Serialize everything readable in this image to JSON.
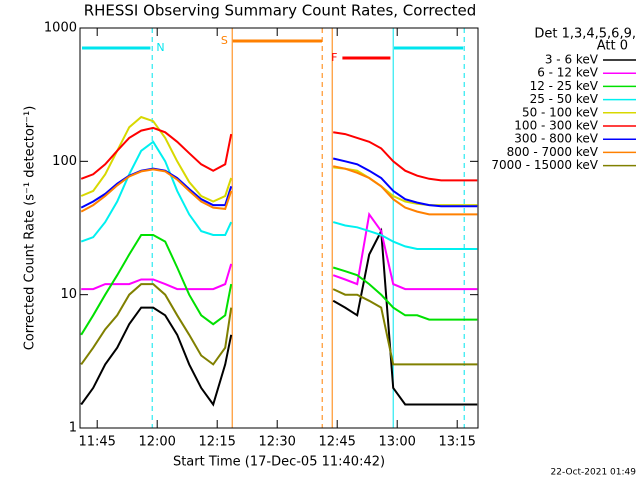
{
  "chart_data": {
    "type": "line",
    "title": "RHESSI Observing Summary Count Rates, Corrected",
    "x_label": "Start Time (17-Dec-05 11:40:42)",
    "y_label": "Corrected Count Rate (s⁻¹ detector⁻¹)",
    "legend_title": [
      "Det 1,3,4,5,6,9,",
      "Att 0"
    ],
    "footer": "22-Oct-2021 01:49",
    "log_y": true,
    "legend": "right",
    "xlim": [
      700.7,
      800.2
    ],
    "ylim": [
      1,
      1000
    ],
    "yticks": [
      1,
      10,
      100,
      1000
    ],
    "xticks": [
      {
        "value": 705,
        "label": "11:45"
      },
      {
        "value": 720,
        "label": "12:00"
      },
      {
        "value": 735,
        "label": "12:15"
      },
      {
        "value": 750,
        "label": "12:30"
      },
      {
        "value": 765,
        "label": "12:45"
      },
      {
        "value": 780,
        "label": "13:00"
      },
      {
        "value": 795,
        "label": "13:15"
      }
    ],
    "x": [
      701,
      704,
      707,
      710,
      713,
      716,
      719,
      722,
      725,
      728,
      731,
      734,
      737,
      738.5,
      750,
      764,
      767,
      770,
      773,
      776,
      779,
      782,
      785,
      788,
      791,
      794,
      797,
      800
    ],
    "series": [
      {
        "name": "3 - 6 keV",
        "color": "#000000",
        "values": [
          1.5,
          2,
          3,
          4,
          6,
          8,
          8,
          7,
          5,
          3,
          2,
          1.5,
          3,
          5,
          null,
          9,
          8,
          7,
          20,
          30,
          2,
          1.5,
          1.5,
          1.5,
          1.5,
          1.5,
          1.5,
          1.5
        ]
      },
      {
        "name": "6 - 12 keV",
        "color": "#ff00ff",
        "values": [
          11,
          11,
          12,
          12,
          12,
          13,
          13,
          12,
          11,
          11,
          11,
          11,
          12,
          17,
          null,
          14,
          13,
          12,
          40,
          30,
          12,
          11,
          11,
          11,
          11,
          11,
          11,
          11
        ]
      },
      {
        "name": "12 - 25 keV",
        "color": "#00e000",
        "values": [
          5,
          7,
          10,
          14,
          20,
          28,
          28,
          25,
          16,
          10,
          7,
          6,
          7,
          12,
          null,
          16,
          15,
          14,
          12,
          10,
          8,
          7,
          7,
          6.5,
          6.5,
          6.5,
          6.5,
          6.5
        ]
      },
      {
        "name": "25 - 50 keV",
        "color": "#00f0f0",
        "values": [
          25,
          27,
          35,
          50,
          80,
          120,
          140,
          100,
          60,
          40,
          30,
          28,
          28,
          35,
          null,
          35,
          33,
          32,
          30,
          28,
          25,
          23,
          22,
          22,
          22,
          22,
          22,
          22
        ]
      },
      {
        "name": "50 - 100 keV",
        "color": "#d8d800",
        "values": [
          55,
          60,
          80,
          120,
          180,
          215,
          200,
          150,
          100,
          70,
          55,
          50,
          55,
          75,
          null,
          90,
          88,
          85,
          75,
          65,
          55,
          50,
          48,
          47,
          47,
          47,
          47,
          47
        ]
      },
      {
        "name": "100 - 300 keV",
        "color": "#ff0000",
        "values": [
          74,
          80,
          95,
          120,
          150,
          170,
          178,
          165,
          140,
          115,
          95,
          85,
          95,
          160,
          null,
          165,
          160,
          150,
          140,
          125,
          100,
          85,
          78,
          74,
          72,
          72,
          72,
          72
        ]
      },
      {
        "name": "300 - 800 keV",
        "color": "#0000ff",
        "values": [
          45,
          50,
          57,
          68,
          78,
          85,
          88,
          85,
          75,
          62,
          52,
          47,
          47,
          65,
          null,
          105,
          100,
          95,
          85,
          75,
          60,
          52,
          49,
          47,
          46,
          46,
          46,
          46
        ]
      },
      {
        "name": "800 - 7000 keV",
        "color": "#ff8000",
        "values": [
          42,
          47,
          55,
          66,
          77,
          84,
          87,
          84,
          73,
          60,
          50,
          45,
          44,
          60,
          null,
          92,
          88,
          82,
          75,
          65,
          52,
          45,
          42,
          40,
          40,
          40,
          40,
          40
        ]
      },
      {
        "name": "7000 - 15000 keV",
        "color": "#808000",
        "values": [
          3,
          4,
          5.5,
          7,
          10,
          12,
          12,
          10,
          7,
          5,
          3.5,
          3,
          4,
          8,
          null,
          11,
          10,
          10,
          9,
          8,
          3,
          3,
          3,
          3,
          3,
          3,
          3,
          3
        ]
      }
    ],
    "flags": [
      {
        "label": "N",
        "color": "#00e5ee",
        "start": 701.2,
        "end": 718.3
      },
      {
        "label": "S",
        "color": "#ff8000",
        "start": 738.9,
        "end": 761.2
      },
      {
        "label": "F",
        "color": "#ff0000",
        "start": 766.3,
        "end": 778.3
      },
      {
        "color": "#00e5ee",
        "start": 779.2,
        "end": 796.5
      }
    ],
    "markers": [
      {
        "x": 718.75,
        "color": "#00e5ee",
        "dashed": true
      },
      {
        "x": 738.75,
        "color": "#ff8000",
        "dashed": false
      },
      {
        "x": 761.25,
        "color": "#ff8000",
        "dashed": true
      },
      {
        "x": 763.75,
        "color": "#ff8000",
        "dashed": false
      },
      {
        "x": 779,
        "color": "#00e5ee",
        "dashed": false
      },
      {
        "x": 796.75,
        "color": "#00e5ee",
        "dashed": true
      }
    ]
  }
}
